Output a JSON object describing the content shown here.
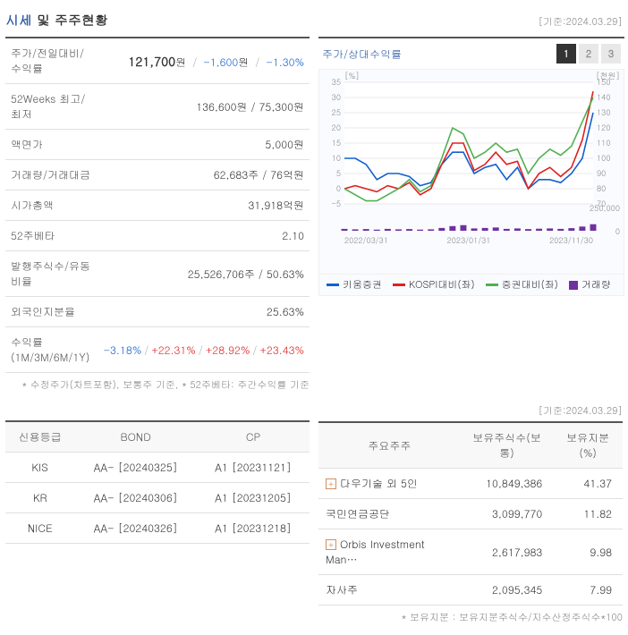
{
  "header": {
    "title_accent": "시세",
    "title_rest": " 및 주주현황",
    "date_note": "[기준:2024.03.29]"
  },
  "price_table": {
    "rows": [
      {
        "label": "주가/전일대비/수익률",
        "price": "121,700",
        "unit": "원",
        "change": "-1,600",
        "change_unit": "원",
        "pct": "-1.30%"
      },
      {
        "label": "52Weeks 최고/최저",
        "plain": "136,600원 / 75,300원"
      },
      {
        "label": "액면가",
        "plain": "5,000원"
      },
      {
        "label": "거래량/거래대금",
        "plain": "62,683주 / 76억원"
      },
      {
        "label": "시가총액",
        "plain": "31,918억원"
      },
      {
        "label": "52주베타",
        "plain": "2.10"
      },
      {
        "label": "발행주식수/유동비율",
        "plain": "25,526,706주 / 50.63%"
      },
      {
        "label": "외국인지분율",
        "plain": "25.63%"
      },
      {
        "label": "수익률 (1M/3M/6M/1Y)",
        "multi": [
          {
            "val": "-3.18%",
            "cls": "blue"
          },
          {
            "val": "+22.31%",
            "cls": "red"
          },
          {
            "val": "+28.92%",
            "cls": "red"
          },
          {
            "val": "+23.43%",
            "cls": "red"
          }
        ]
      }
    ],
    "footnote": "* 수정주가(차트포함), 보통주 기준, * 52주베타: 주간수익률 기준"
  },
  "chart": {
    "title": "주가/상대수익률",
    "tabs": [
      "1",
      "2",
      "3"
    ],
    "active_tab": 0,
    "left_axis": {
      "label": "[%]",
      "min": -5,
      "max": 35,
      "step": 5
    },
    "right_axis": {
      "label": "[천원]",
      "min": 70,
      "max": 150,
      "step": 10
    },
    "vol_axis_max": 250000,
    "x_labels": [
      "2022/03/31",
      "2023/01/31",
      "2023/11/30"
    ],
    "series": [
      {
        "name": "키움증권",
        "color": "#1060d0",
        "type": "line",
        "y": [
          10,
          10,
          8,
          3,
          5,
          5,
          4,
          1,
          2,
          8,
          12,
          12,
          5,
          7,
          8,
          3,
          7,
          0,
          3,
          3,
          2,
          5,
          10,
          25
        ]
      },
      {
        "name": "KOSPI대비(좌)",
        "color": "#e02020",
        "type": "line",
        "y": [
          0,
          1,
          0,
          -1,
          1,
          0,
          2,
          -2,
          0,
          8,
          15,
          15,
          6,
          8,
          12,
          8,
          9,
          0,
          5,
          7,
          4,
          7,
          16,
          32
        ]
      },
      {
        "name": "증권대비(좌)",
        "color": "#50b050",
        "type": "line",
        "y": [
          0,
          -2,
          -4,
          -4,
          -2,
          0,
          3,
          -1,
          1,
          10,
          20,
          18,
          10,
          12,
          15,
          12,
          13,
          5,
          10,
          13,
          11,
          14,
          22,
          30
        ]
      },
      {
        "name": "거래량",
        "color": "#7030a0",
        "type": "bar",
        "y": [
          20,
          15,
          18,
          12,
          20,
          15,
          18,
          12,
          15,
          30,
          50,
          60,
          25,
          30,
          35,
          20,
          25,
          18,
          22,
          25,
          20,
          28,
          45,
          70
        ]
      }
    ],
    "legend": [
      {
        "label": "키움증권",
        "color": "#1060d0",
        "type": "line"
      },
      {
        "label": "KOSPI대비(좌)",
        "color": "#e02020",
        "type": "line"
      },
      {
        "label": "증권대비(좌)",
        "color": "#50b050",
        "type": "line"
      },
      {
        "label": "거래량",
        "color": "#7030a0",
        "type": "bar"
      }
    ]
  },
  "ratings": {
    "headers": [
      "신용등급",
      "BOND",
      "CP"
    ],
    "rows": [
      [
        "KIS",
        "AA-  [20240325]",
        "A1  [20231121]"
      ],
      [
        "KR",
        "AA-  [20240306]",
        "A1  [20231205]"
      ],
      [
        "NICE",
        "AA-  [20240326]",
        "A1  [20231218]"
      ]
    ]
  },
  "shareholders": {
    "date_note": "[기준:2024.03.29]",
    "headers": [
      "주요주주",
      "보유주식수(보통)",
      "보유지분(%)"
    ],
    "rows": [
      {
        "expand": true,
        "name": "다우기술 외 5인",
        "shares": "10,849,386",
        "pct": "41.37"
      },
      {
        "expand": false,
        "name": "국민연금공단",
        "shares": "3,099,770",
        "pct": "11.82"
      },
      {
        "expand": true,
        "name": "Orbis Investment Man…",
        "shares": "2,617,983",
        "pct": "9.98"
      },
      {
        "expand": false,
        "name": "자사주",
        "shares": "2,095,345",
        "pct": "7.99"
      }
    ],
    "footnote": "* 보유지분 : 보유지분주식수/지수산정주식수*100"
  }
}
